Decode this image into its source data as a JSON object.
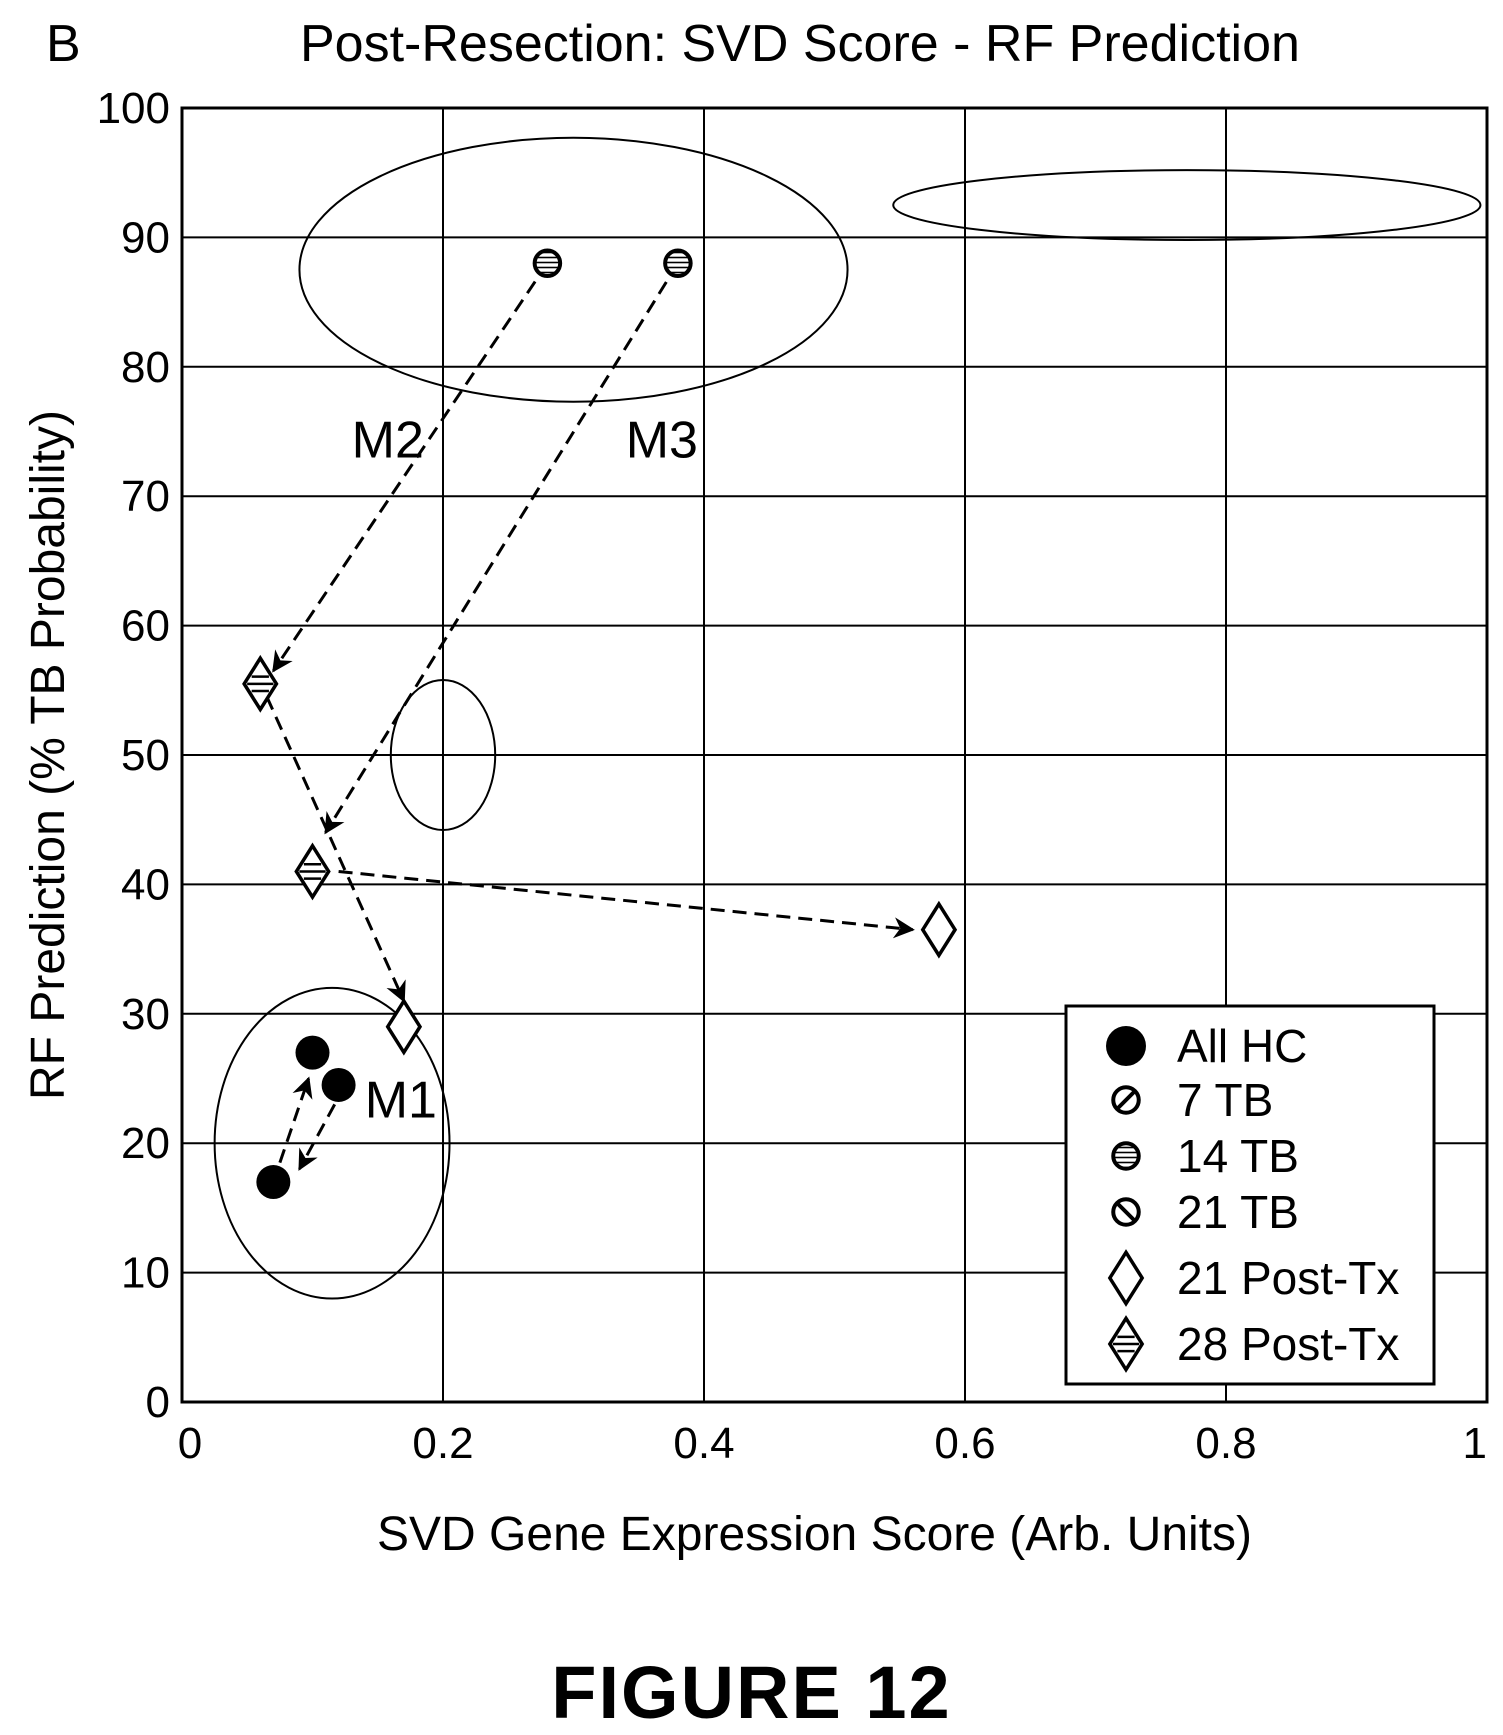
{
  "panel_letter": "B",
  "figure_label": "FIGURE 12",
  "chart_data": {
    "type": "scatter",
    "title": "Post-Resection: SVD Score - RF Prediction",
    "xlabel": "SVD Gene Expression Score (Arb. Units)",
    "ylabel": "RF Prediction (% TB Probability)",
    "xlim": [
      0,
      1
    ],
    "ylim": [
      0,
      100
    ],
    "x_ticks": [
      0,
      0.2,
      0.4,
      0.6,
      0.8,
      1
    ],
    "x_tick_labels": [
      "0",
      "0.2",
      "0.4",
      "0.6",
      "0.8",
      "1"
    ],
    "y_ticks": [
      0,
      10,
      20,
      30,
      40,
      50,
      60,
      70,
      80,
      90,
      100
    ],
    "y_tick_labels": [
      "0",
      "10",
      "20",
      "30",
      "40",
      "50",
      "60",
      "70",
      "80",
      "90",
      "100"
    ],
    "grid": true,
    "legend_position": "bottom-right",
    "series": [
      {
        "name": "All HC",
        "marker": "filled-circle",
        "points": [
          {
            "x": 0.1,
            "y": 27
          },
          {
            "x": 0.12,
            "y": 24.5
          },
          {
            "x": 0.07,
            "y": 17
          }
        ]
      },
      {
        "name": "7 TB",
        "marker": "circle-slash",
        "points": []
      },
      {
        "name": "14 TB",
        "marker": "circle-hatched",
        "points": [
          {
            "x": 0.28,
            "y": 88
          },
          {
            "x": 0.38,
            "y": 88
          }
        ]
      },
      {
        "name": "21 TB",
        "marker": "circle-backslash",
        "points": []
      },
      {
        "name": "21 Post-Tx",
        "marker": "diamond",
        "points": [
          {
            "x": 0.58,
            "y": 36.5
          },
          {
            "x": 0.17,
            "y": 29
          }
        ]
      },
      {
        "name": "28 Post-Tx",
        "marker": "diamond-lined",
        "points": [
          {
            "x": 0.06,
            "y": 55.5
          },
          {
            "x": 0.1,
            "y": 41
          }
        ]
      }
    ],
    "arrows": [
      {
        "from": [
          0.28,
          88
        ],
        "to": [
          0.07,
          56.5
        ],
        "style": "dashed"
      },
      {
        "from": [
          0.38,
          88
        ],
        "to": [
          0.11,
          44
        ],
        "style": "dashed"
      },
      {
        "from": [
          0.065,
          54.5
        ],
        "to": [
          0.17,
          31
        ],
        "style": "dashed"
      },
      {
        "from": [
          0.12,
          41
        ],
        "to": [
          0.56,
          36.5
        ],
        "style": "dashed"
      },
      {
        "from": [
          0.075,
          18.5
        ],
        "to": [
          0.097,
          25
        ],
        "style": "dashed"
      },
      {
        "from": [
          0.117,
          23
        ],
        "to": [
          0.09,
          18
        ],
        "style": "dashed"
      }
    ],
    "ellipses": [
      {
        "cx": 0.3,
        "cy": 87.5,
        "rx": 0.21,
        "ry": 10.2
      },
      {
        "cx": 0.77,
        "cy": 92.5,
        "rx": 0.225,
        "ry": 2.7
      },
      {
        "cx": 0.2,
        "cy": 50,
        "rx": 0.04,
        "ry": 5.8
      },
      {
        "cx": 0.115,
        "cy": 20,
        "rx": 0.09,
        "ry": 12
      }
    ],
    "annotations": [
      {
        "text": "M2",
        "x": 0.13,
        "y": 73
      },
      {
        "text": "M3",
        "x": 0.34,
        "y": 73
      },
      {
        "text": "M1",
        "x": 0.14,
        "y": 22
      }
    ]
  }
}
